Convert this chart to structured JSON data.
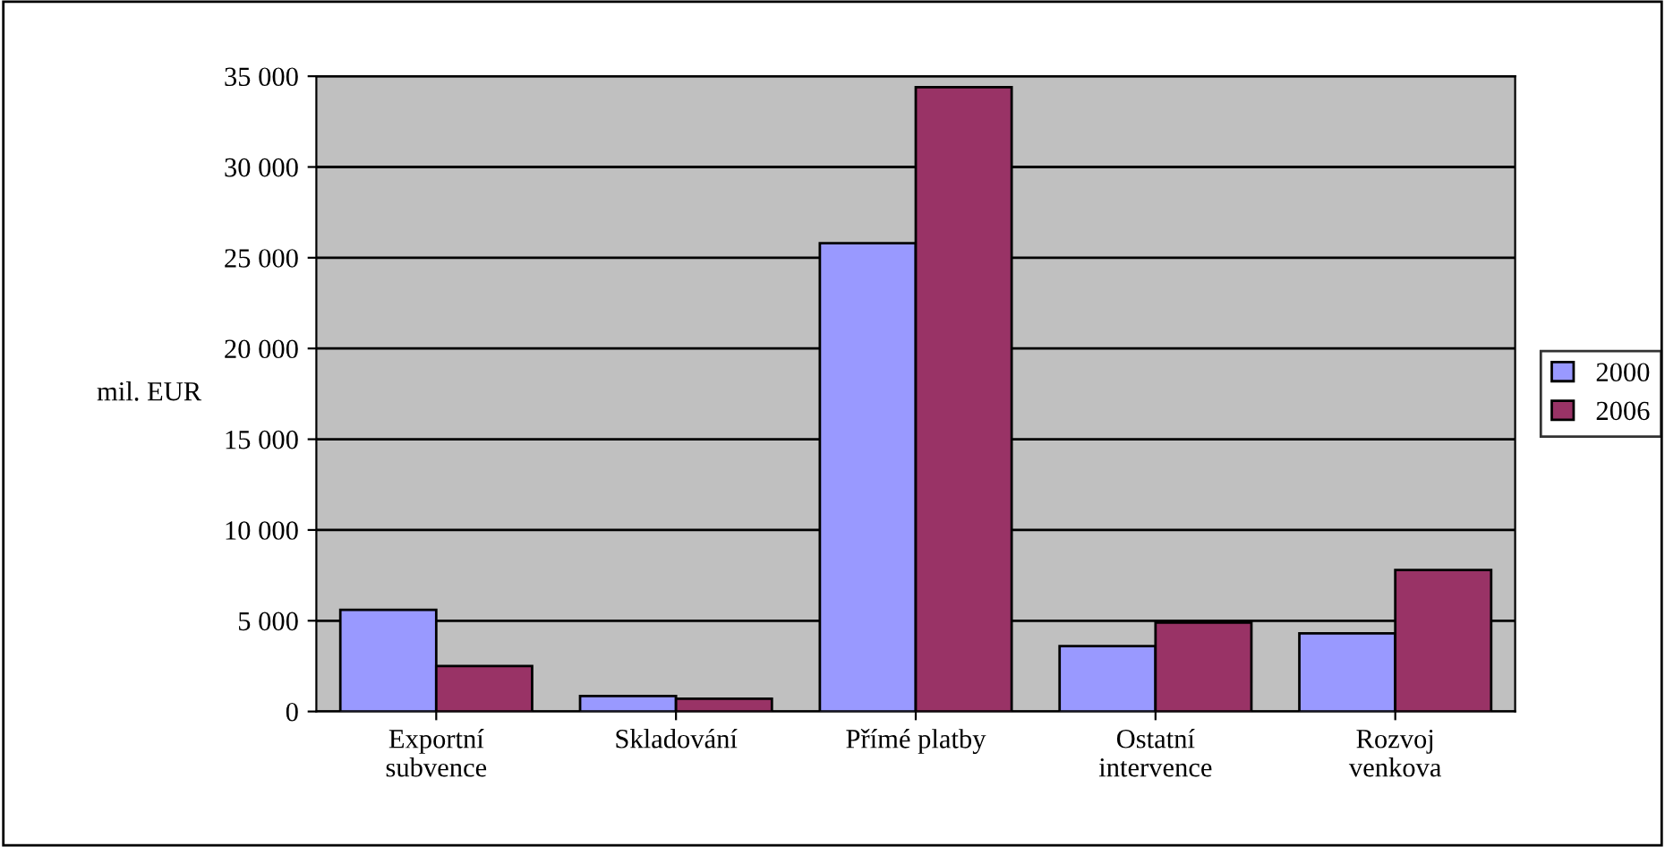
{
  "chart_data": {
    "type": "bar",
    "ylabel": "mil. EUR",
    "categories": [
      "Exportní\nsubvence",
      "Skladování",
      "Přímé platby",
      "Ostatní\nintervence",
      "Rozvoj\nvenkova"
    ],
    "series": [
      {
        "name": "2000",
        "color": "#9999ff",
        "values": [
          5600,
          850,
          25800,
          3600,
          4300
        ]
      },
      {
        "name": "2006",
        "color": "#993366",
        "values": [
          2500,
          700,
          34400,
          4900,
          7800
        ]
      }
    ],
    "ylim": [
      0,
      35000
    ],
    "yticks": [
      {
        "value": 0,
        "label": "0"
      },
      {
        "value": 5000,
        "label": "5 000"
      },
      {
        "value": 10000,
        "label": "10 000"
      },
      {
        "value": 15000,
        "label": "15 000"
      },
      {
        "value": 20000,
        "label": "20 000"
      },
      {
        "value": 25000,
        "label": "25 000"
      },
      {
        "value": 30000,
        "label": "30 000"
      },
      {
        "value": 35000,
        "label": "35 000"
      }
    ],
    "grid": "y",
    "legend": "right"
  }
}
